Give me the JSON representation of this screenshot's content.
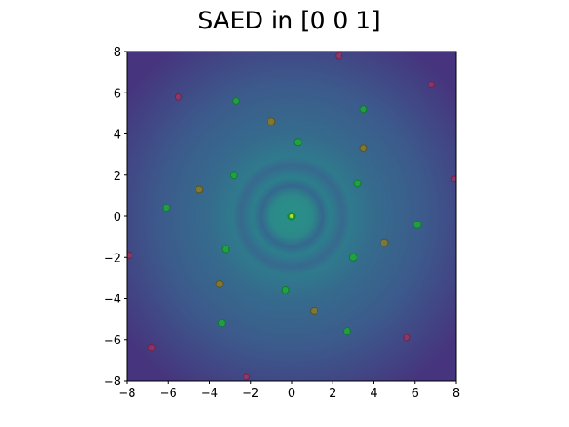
{
  "chart_data": {
    "type": "scatter",
    "title": "SAED in [0 0 1]",
    "xlabel": "",
    "ylabel": "",
    "xlim": [
      -8,
      8
    ],
    "ylim": [
      -8,
      8
    ],
    "xticks": [
      -8,
      -6,
      -4,
      -2,
      0,
      2,
      4,
      6,
      8
    ],
    "yticks": [
      -8,
      -6,
      -4,
      -2,
      0,
      2,
      4,
      6,
      8
    ],
    "grid": false,
    "background": "diffraction-intensity-image",
    "colors": {
      "background_center": "#2a8f8a",
      "background_edge": "#433d84",
      "ring": "#3a6f8f",
      "green_spots": "#1fa83a",
      "olive_spots": "#8a7a2a",
      "red_spots": "#c0305a",
      "center_spot": "#b8e020"
    },
    "series": [
      {
        "marker_color": "green",
        "points": [
          [
            0,
            0
          ],
          [
            0.3,
            3.6
          ],
          [
            -0.3,
            -3.6
          ],
          [
            -2.8,
            2.0
          ],
          [
            3.2,
            1.6
          ],
          [
            -3.2,
            -1.6
          ],
          [
            3.0,
            -2.0
          ],
          [
            -2.7,
            5.6
          ],
          [
            3.5,
            5.2
          ],
          [
            -6.1,
            0.4
          ],
          [
            6.1,
            -0.4
          ],
          [
            -3.4,
            -5.2
          ],
          [
            2.7,
            -5.6
          ]
        ]
      },
      {
        "marker_color": "olive",
        "points": [
          [
            -1.0,
            4.6
          ],
          [
            3.5,
            3.3
          ],
          [
            -4.5,
            1.3
          ],
          [
            4.5,
            -1.3
          ],
          [
            -3.5,
            -3.3
          ],
          [
            1.1,
            -4.6
          ]
        ]
      },
      {
        "marker_color": "red",
        "points": [
          [
            -5.5,
            5.8
          ],
          [
            2.3,
            7.8
          ],
          [
            6.8,
            6.4
          ],
          [
            7.9,
            1.8
          ],
          [
            -7.9,
            -1.9
          ],
          [
            -6.8,
            -6.4
          ],
          [
            5.6,
            -5.9
          ],
          [
            -2.2,
            -7.8
          ]
        ]
      }
    ]
  }
}
